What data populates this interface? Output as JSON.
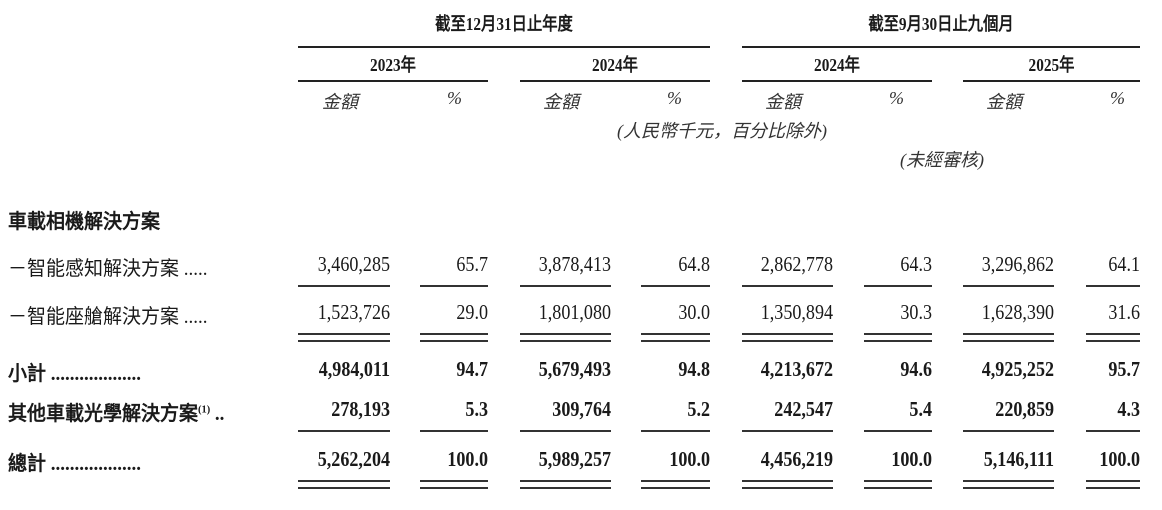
{
  "header": {
    "group_annual": "截至12月31日止年度",
    "group_nine_months": "截至9月30日止九個月",
    "years": [
      "2023年",
      "2024年",
      "2024年",
      "2025年"
    ],
    "amount_label": "金額",
    "percent_label": "%",
    "unit_note": "(人民幣千元，百分比除外)",
    "unaudited_note": "(未經審核)"
  },
  "section_title": "車載相機解決方案",
  "rows": [
    {
      "label": "－智能感知解決方案 .....",
      "values": [
        "3,460,285",
        "65.7",
        "3,878,413",
        "64.8",
        "2,862,778",
        "64.3",
        "3,296,862",
        "64.1"
      ],
      "bold": false,
      "underline": "single"
    },
    {
      "label": "－智能座艙解決方案 .....",
      "values": [
        "1,523,726",
        "29.0",
        "1,801,080",
        "30.0",
        "1,350,894",
        "30.3",
        "1,628,390",
        "31.6"
      ],
      "bold": false,
      "underline": "double"
    },
    {
      "label": "小計 ...................",
      "values": [
        "4,984,011",
        "94.7",
        "5,679,493",
        "94.8",
        "4,213,672",
        "94.6",
        "4,925,252",
        "95.7"
      ],
      "bold": true,
      "underline": "none"
    },
    {
      "label": "其他車載光學解決方案",
      "footnote": "(1)",
      "label_suffix": " ..",
      "values": [
        "278,193",
        "5.3",
        "309,764",
        "5.2",
        "242,547",
        "5.4",
        "220,859",
        "4.3"
      ],
      "bold": true,
      "underline": "single"
    },
    {
      "label": "總計 ...................",
      "values": [
        "5,262,204",
        "100.0",
        "5,989,257",
        "100.0",
        "4,456,219",
        "100.0",
        "5,146,111",
        "100.0"
      ],
      "bold": true,
      "underline": "double"
    }
  ]
}
